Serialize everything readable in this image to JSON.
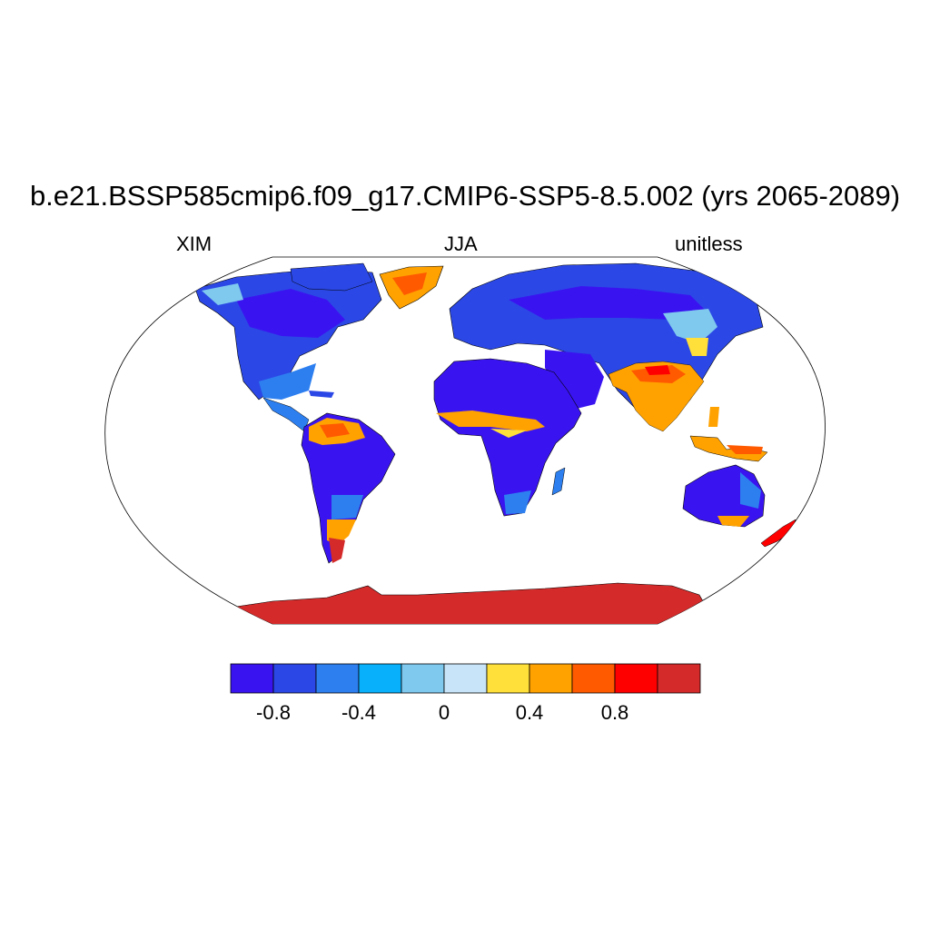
{
  "title": "b.e21.BSSP585cmip6.f09_g17.CMIP6-SSP5-8.5.002 (yrs 2065-2089)",
  "left_string": "XIM",
  "center_string": "JJA",
  "right_string": "unitless",
  "colorbar": {
    "colors": [
      "#3a14f0",
      "#2b48e6",
      "#2d7ff0",
      "#08b0fb",
      "#7fc8ee",
      "#c8e4f8",
      "#ffdf3a",
      "#ffa200",
      "#ff5a00",
      "#ff0000",
      "#d42a2a"
    ],
    "tick_labels": [
      "-0.8",
      "-0.4",
      "0",
      "0.4",
      "0.8"
    ]
  },
  "map": {
    "projection": "Robinson",
    "ocean_color": "#ffffff",
    "coastline_color": "#000000"
  }
}
